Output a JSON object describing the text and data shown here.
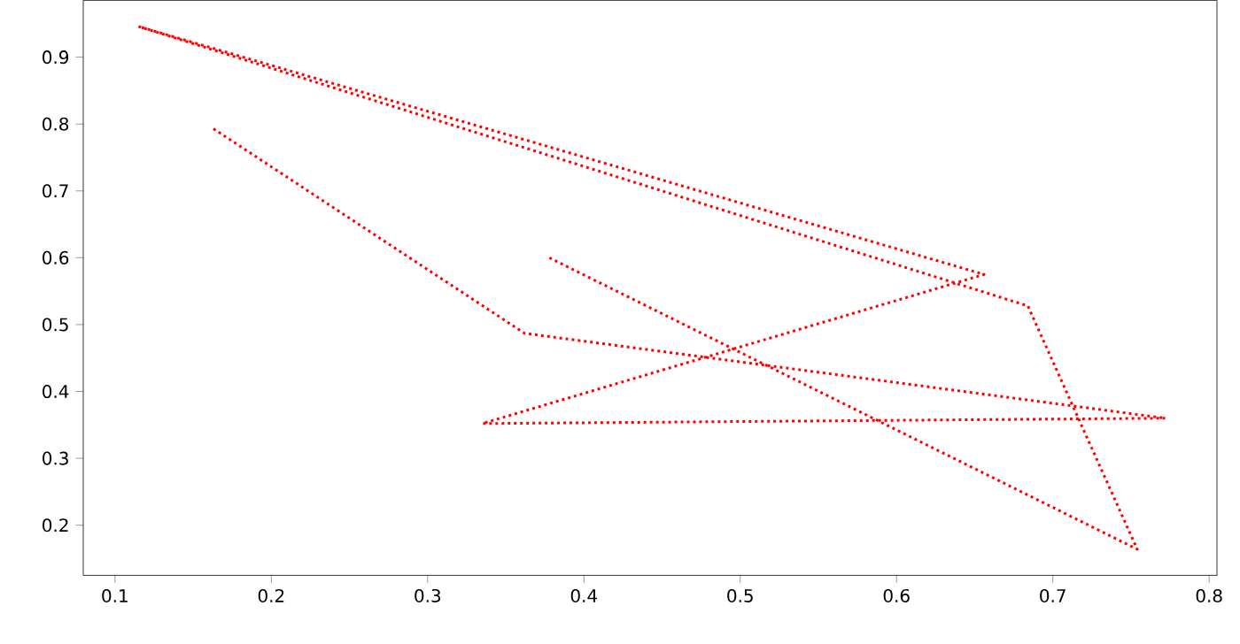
{
  "chart_data": {
    "type": "line",
    "x": [
      0.163,
      0.362,
      0.772,
      0.335,
      0.656,
      0.115,
      0.684,
      0.754,
      0.377
    ],
    "series": [
      {
        "color": "#ff0000",
        "values": [
          0.793,
          0.487,
          0.36,
          0.352,
          0.575,
          0.946,
          0.528,
          0.164,
          0.601
        ]
      }
    ],
    "line_style": "dotted",
    "marker": "none",
    "xlim": [
      0.0797,
      0.805
    ],
    "ylim": [
      0.125,
      0.985
    ],
    "xticks": [
      0.1,
      0.2,
      0.3,
      0.4,
      0.5,
      0.6,
      0.7,
      0.8
    ],
    "yticks": [
      0.2,
      0.3,
      0.4,
      0.5,
      0.6,
      0.7,
      0.8,
      0.9
    ]
  }
}
